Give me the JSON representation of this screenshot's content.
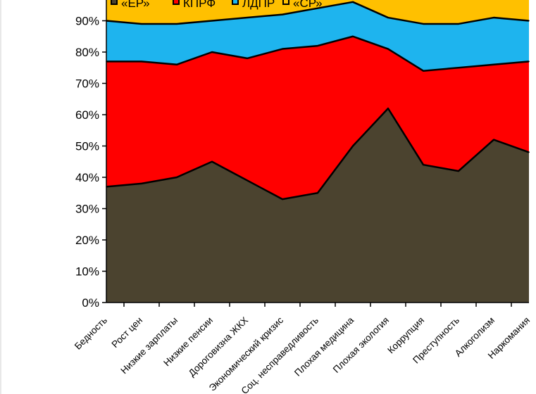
{
  "chart_data": {
    "type": "area",
    "stacked": true,
    "categories": [
      "Бедность",
      "Рост цен",
      "Низкие зарплаты",
      "Низкие пенсии",
      "Дороговизна ЖКХ",
      "Экономический кризис",
      "Соц. несправедливость",
      "Плохая медицина",
      "Плохая экология",
      "Коррупция",
      "Преступность",
      "Алкоголизм",
      "Наркомания"
    ],
    "series": [
      {
        "name": "«ЕР»",
        "color": "#4b432f",
        "values": [
          37,
          38,
          40,
          45,
          39,
          33,
          35,
          50,
          62,
          44,
          42,
          52,
          48
        ]
      },
      {
        "name": "КПРФ",
        "color": "#ff0000",
        "values": [
          40,
          39,
          36,
          35,
          39,
          48,
          47,
          35,
          19,
          30,
          33,
          24,
          29
        ]
      },
      {
        "name": "ЛДПР",
        "color": "#1eb4ee",
        "values": [
          13,
          12,
          13,
          10,
          13,
          11,
          12,
          11,
          10,
          15,
          14,
          15,
          13
        ]
      },
      {
        "name": "«СР»",
        "color": "#ffc000",
        "values": [
          10,
          11,
          11,
          10,
          9,
          8,
          6,
          4,
          9,
          11,
          11,
          9,
          10
        ]
      }
    ],
    "ylim": [
      0,
      100
    ],
    "yticks": [
      "0%",
      "10%",
      "20%",
      "30%",
      "40%",
      "50%",
      "60%",
      "70%",
      "80%",
      "90%"
    ],
    "legend_position": "top",
    "grid": false
  }
}
